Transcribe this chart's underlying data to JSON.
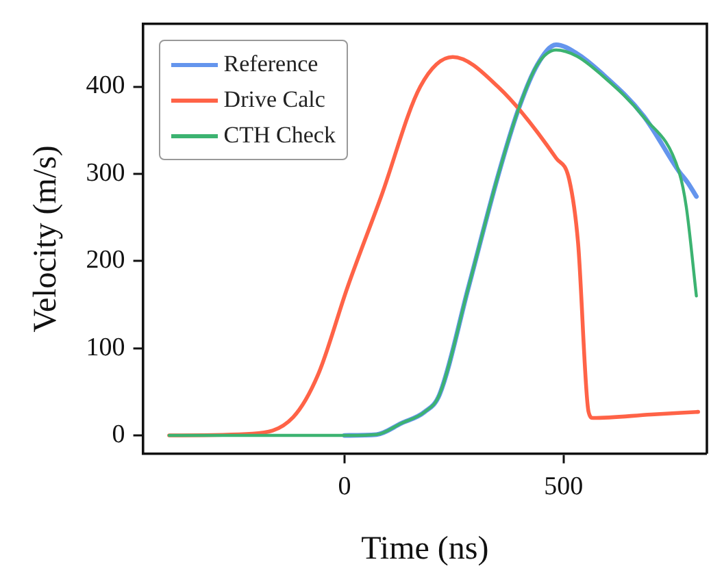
{
  "chart_data": {
    "type": "line",
    "xlabel": "Time (ns)",
    "ylabel": "Velocity (m/s)",
    "xlim": [
      -460,
      827
    ],
    "ylim": [
      -21,
      472
    ],
    "xticks": [
      0,
      500
    ],
    "yticks": [
      0,
      100,
      200,
      300,
      400
    ],
    "grid": false,
    "legend": "top left",
    "marker": "none",
    "line_style": "solid",
    "series": [
      {
        "name": "Reference",
        "color": "#6495ed",
        "x": [
          0,
          73,
          130,
          183,
          217,
          283,
          350,
          397,
          440,
          483,
          530,
          583,
          683,
          763,
          783,
          803
        ],
        "values": [
          0,
          1,
          14,
          27,
          47,
          170,
          297,
          374,
          425,
          448,
          438,
          417,
          366,
          303,
          290,
          274
        ]
      },
      {
        "name": "Drive Calc",
        "color": "#ff6347",
        "x": [
          -400,
          -210,
          -117,
          -60,
          7,
          83,
          173,
          247,
          350,
          483,
          513,
          533,
          557,
          567,
          700,
          807
        ],
        "values": [
          0,
          2,
          21,
          70,
          170,
          273,
          400,
          434,
          400,
          318,
          293,
          221,
          27,
          20,
          24,
          27
        ]
      },
      {
        "name": "CTH Check",
        "color": "#3cb371",
        "x": [
          -400,
          0,
          73,
          130,
          183,
          217,
          283,
          350,
          397,
          440,
          483,
          530,
          583,
          683,
          763,
          780,
          803
        ],
        "values": [
          0,
          0,
          1,
          14,
          27,
          47,
          170,
          297,
          374,
          425,
          442,
          435,
          415,
          365,
          303,
          262,
          160
        ]
      }
    ]
  }
}
